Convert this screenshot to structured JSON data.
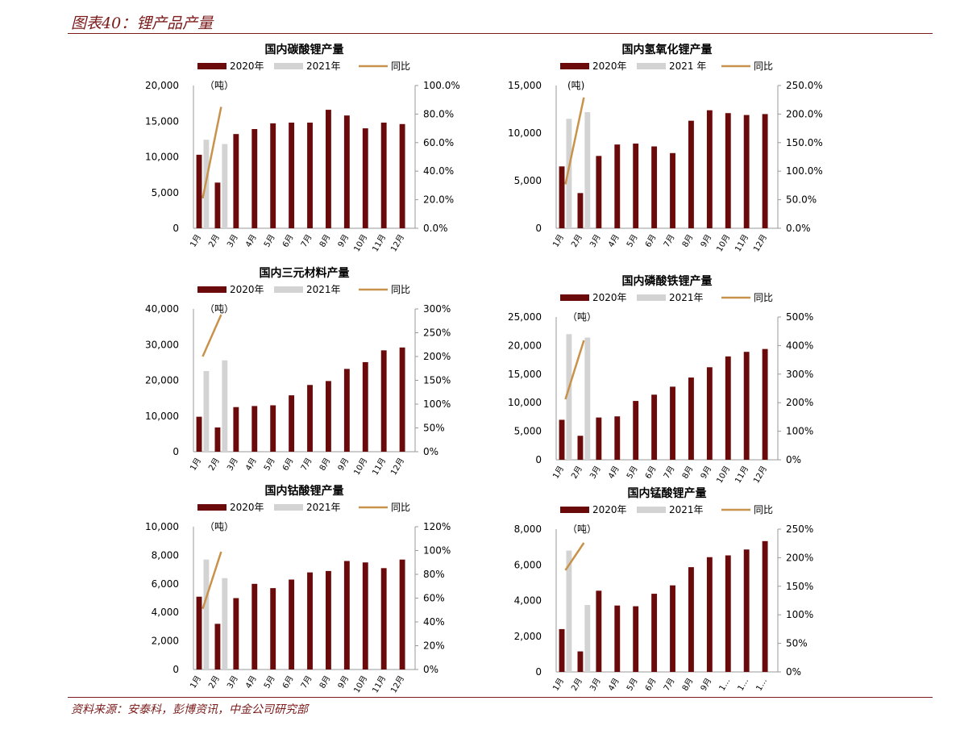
{
  "page": {
    "figure_title": "图表40：锂产品产量",
    "source": "资料来源：安泰科，彭博资讯，中金公司研究部"
  },
  "colors": {
    "series_2020": "#6b0a0a",
    "series_2021": "#d3d3d3",
    "yoy": "#c8924a",
    "rule": "#7a1a1a"
  },
  "chart_data": [
    {
      "type": "bar",
      "title": "国内碳酸锂产量",
      "unit_label": "（吨）",
      "categories": [
        "1月",
        "2月",
        "3月",
        "4月",
        "5月",
        "6月",
        "7月",
        "8月",
        "9月",
        "10月",
        "11月",
        "12月"
      ],
      "legend": [
        "2020年",
        "2021年",
        "同比"
      ],
      "series": [
        {
          "name": "2020年",
          "values": [
            10300,
            6400,
            13200,
            13900,
            14700,
            14800,
            14800,
            16600,
            15800,
            14000,
            14800,
            14600
          ]
        },
        {
          "name": "2021年",
          "values": [
            12400,
            11800,
            null,
            null,
            null,
            null,
            null,
            null,
            null,
            null,
            null,
            null
          ]
        },
        {
          "name": "同比",
          "axis": "right",
          "kind": "line",
          "values": [
            0.21,
            0.85,
            null,
            null,
            null,
            null,
            null,
            null,
            null,
            null,
            null,
            null
          ]
        }
      ],
      "ylim": [
        0,
        20000
      ],
      "yticks": [
        "0",
        "5,000",
        "10,000",
        "15,000",
        "20,000"
      ],
      "y2lim": [
        0,
        1.0
      ],
      "y2ticks": [
        "0.0%",
        "20.0%",
        "40.0%",
        "60.0%",
        "80.0%",
        "100.0%"
      ]
    },
    {
      "type": "bar",
      "title": "国内氢氧化锂产量",
      "unit_label": "(吨)",
      "categories": [
        "1月",
        "2月",
        "3月",
        "4月",
        "5月",
        "6月",
        "7月",
        "8月",
        "9月",
        "10月",
        "11月",
        "12月"
      ],
      "legend": [
        "2020年",
        "2021  年",
        "同比"
      ],
      "series": [
        {
          "name": "2020年",
          "values": [
            6500,
            3700,
            7600,
            8800,
            8900,
            8600,
            7900,
            11300,
            12400,
            12100,
            11900,
            12000
          ]
        },
        {
          "name": "2021  年",
          "values": [
            11500,
            12200,
            null,
            null,
            null,
            null,
            null,
            null,
            null,
            null,
            null,
            null
          ]
        },
        {
          "name": "同比",
          "axis": "right",
          "kind": "line",
          "values": [
            0.77,
            2.29,
            null,
            null,
            null,
            null,
            null,
            null,
            null,
            null,
            null,
            null
          ]
        }
      ],
      "ylim": [
        0,
        15000
      ],
      "yticks": [
        "0",
        "5,000",
        "10,000",
        "15,000"
      ],
      "y2lim": [
        0,
        2.5
      ],
      "y2ticks": [
        "0.0%",
        "50.0%",
        "100.0%",
        "150.0%",
        "200.0%",
        "250.0%"
      ]
    },
    {
      "type": "bar",
      "title": "国内三元材料产量",
      "unit_label": "（吨）",
      "categories": [
        "1月",
        "2月",
        "3月",
        "4月",
        "5月",
        "6月",
        "7月",
        "8月",
        "9月",
        "10月",
        "11月",
        "12月"
      ],
      "legend": [
        "2020年",
        "2021年",
        "同比"
      ],
      "series": [
        {
          "name": "2020年",
          "values": [
            9800,
            6800,
            12500,
            12800,
            13000,
            15800,
            18700,
            19800,
            23200,
            25100,
            28400,
            29200
          ]
        },
        {
          "name": "2021年",
          "values": [
            22600,
            25600,
            null,
            null,
            null,
            null,
            null,
            null,
            null,
            null,
            null,
            null
          ]
        },
        {
          "name": "同比",
          "axis": "right",
          "kind": "line",
          "values": [
            2.0,
            2.88,
            null,
            null,
            null,
            null,
            null,
            null,
            null,
            null,
            null,
            null
          ]
        }
      ],
      "ylim": [
        0,
        40000
      ],
      "yticks": [
        "0",
        "10,000",
        "20,000",
        "30,000",
        "40,000"
      ],
      "y2lim": [
        0,
        3.0
      ],
      "y2ticks": [
        "0%",
        "50%",
        "100%",
        "150%",
        "200%",
        "250%",
        "300%"
      ]
    },
    {
      "type": "bar",
      "title": "国内磷酸铁锂产量",
      "unit_label": "（吨）",
      "categories": [
        "1月",
        "2月",
        "3月",
        "4月",
        "5月",
        "6月",
        "7月",
        "8月",
        "9月",
        "10月",
        "11月",
        "12月"
      ],
      "legend": [
        "2020年",
        "2021年",
        "同比"
      ],
      "series": [
        {
          "name": "2020年",
          "values": [
            7000,
            4200,
            7400,
            7600,
            10300,
            11400,
            12800,
            14400,
            16200,
            18100,
            18900,
            19400
          ]
        },
        {
          "name": "2021年",
          "values": [
            22000,
            21400,
            null,
            null,
            null,
            null,
            null,
            null,
            null,
            null,
            null,
            null
          ]
        },
        {
          "name": "同比",
          "axis": "right",
          "kind": "line",
          "values": [
            2.12,
            4.18,
            null,
            null,
            null,
            null,
            null,
            null,
            null,
            null,
            null,
            null
          ]
        }
      ],
      "ylim": [
        0,
        25000
      ],
      "yticks": [
        "0",
        "5,000",
        "10,000",
        "15,000",
        "20,000",
        "25,000"
      ],
      "y2lim": [
        0,
        5.0
      ],
      "y2ticks": [
        "0%",
        "100%",
        "200%",
        "300%",
        "400%",
        "500%"
      ]
    },
    {
      "type": "bar",
      "title": "国内钴酸锂产量",
      "unit_label": "（吨）",
      "categories": [
        "1月",
        "2月",
        "3月",
        "4月",
        "5月",
        "6月",
        "7月",
        "8月",
        "9月",
        "10月",
        "11月",
        "12月"
      ],
      "legend": [
        "2020年",
        "2021年",
        "同比"
      ],
      "series": [
        {
          "name": "2020年",
          "values": [
            5100,
            3200,
            5000,
            6000,
            5700,
            6300,
            6800,
            6900,
            7600,
            7500,
            7100,
            7700
          ]
        },
        {
          "name": "2021年",
          "values": [
            7700,
            6400,
            null,
            null,
            null,
            null,
            null,
            null,
            null,
            null,
            null,
            null
          ]
        },
        {
          "name": "同比",
          "axis": "right",
          "kind": "line",
          "values": [
            0.51,
            0.99,
            null,
            null,
            null,
            null,
            null,
            null,
            null,
            null,
            null,
            null
          ]
        }
      ],
      "ylim": [
        0,
        10000
      ],
      "yticks": [
        "0",
        "2,000",
        "4,000",
        "6,000",
        "8,000",
        "10,000"
      ],
      "y2lim": [
        0,
        1.2
      ],
      "y2ticks": [
        "0%",
        "20%",
        "40%",
        "60%",
        "80%",
        "100%",
        "120%"
      ]
    },
    {
      "type": "bar",
      "title": "国内锰酸锂产量",
      "unit_label": "（吨）",
      "categories": [
        "1月",
        "2月",
        "3月",
        "4月",
        "5月",
        "6月",
        "7月",
        "8月",
        "9月",
        "1…",
        "1…",
        "1…"
      ],
      "legend": [
        "2020年",
        "2021年",
        "同比"
      ],
      "series": [
        {
          "name": "2020年",
          "values": [
            2400,
            1150,
            4550,
            3720,
            3680,
            4380,
            4850,
            5870,
            6430,
            6530,
            6860,
            7330
          ]
        },
        {
          "name": "2021年",
          "values": [
            6800,
            3750,
            null,
            null,
            null,
            null,
            null,
            null,
            null,
            null,
            null,
            null
          ]
        },
        {
          "name": "同比",
          "axis": "right",
          "kind": "line",
          "values": [
            1.78,
            2.26,
            null,
            null,
            null,
            null,
            null,
            null,
            null,
            null,
            null,
            null
          ]
        }
      ],
      "ylim": [
        0,
        8000
      ],
      "yticks": [
        "0",
        "2,000",
        "4,000",
        "6,000",
        "8,000"
      ],
      "y2lim": [
        0,
        2.5
      ],
      "y2ticks": [
        "0%",
        "50%",
        "100%",
        "150%",
        "200%",
        "250%"
      ]
    }
  ]
}
